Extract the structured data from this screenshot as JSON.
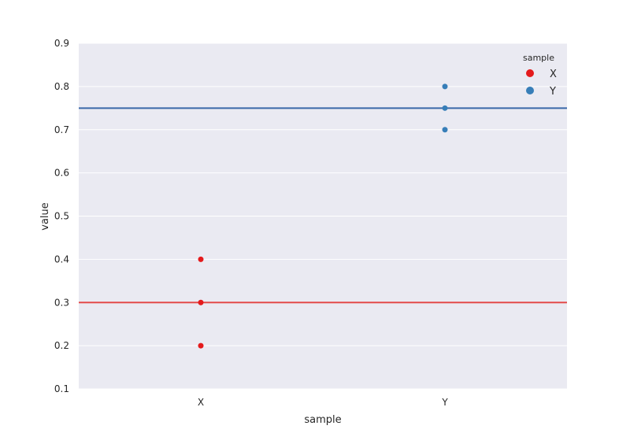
{
  "chart_data": {
    "type": "scatter",
    "xlabel": "sample",
    "ylabel": "value",
    "categories": [
      "X",
      "Y"
    ],
    "ylim": [
      0.1,
      0.9
    ],
    "yticks": [
      "0.1",
      "0.2",
      "0.3",
      "0.4",
      "0.5",
      "0.6",
      "0.7",
      "0.8",
      "0.9"
    ],
    "grid": true,
    "background_color": "#eaeaf2",
    "legend": {
      "title": "sample",
      "placement": "top-right",
      "entries": [
        "X",
        "Y"
      ]
    },
    "series": [
      {
        "name": "X",
        "color": "#e41a1c",
        "points": [
          {
            "x": "X",
            "y": 0.2
          },
          {
            "x": "X",
            "y": 0.3
          },
          {
            "x": "X",
            "y": 0.4
          }
        ],
        "mean_line": 0.3,
        "mean_line_color": "#e34a4a"
      },
      {
        "name": "Y",
        "color": "#377eb8",
        "points": [
          {
            "x": "Y",
            "y": 0.7
          },
          {
            "x": "Y",
            "y": 0.75
          },
          {
            "x": "Y",
            "y": 0.8
          }
        ],
        "mean_line": 0.75,
        "mean_line_color": "#3a68a8"
      }
    ]
  }
}
